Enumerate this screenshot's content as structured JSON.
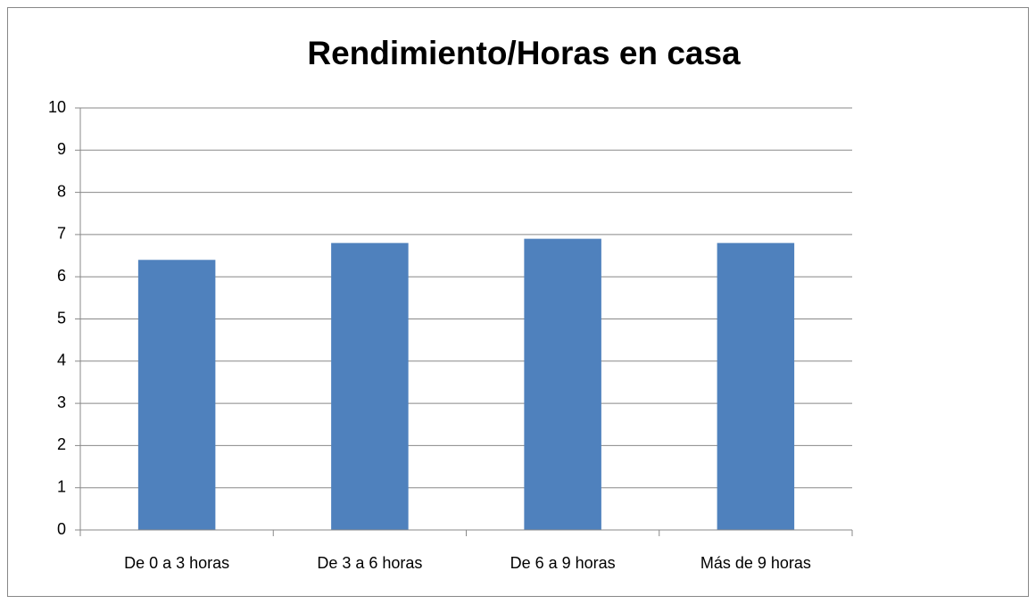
{
  "chart_data": {
    "type": "bar",
    "title": "Rendimiento/Horas en casa",
    "categories": [
      "De 0 a 3 horas",
      "De 3 a 6 horas",
      "De 6 a 9 horas",
      "Más de 9 horas"
    ],
    "values": [
      6.4,
      6.8,
      6.9,
      6.8
    ],
    "color": "#4f81bd",
    "ylim": [
      0,
      10
    ],
    "yticks": [
      0,
      1,
      2,
      3,
      4,
      5,
      6,
      7,
      8,
      9,
      10
    ],
    "grid": true
  }
}
